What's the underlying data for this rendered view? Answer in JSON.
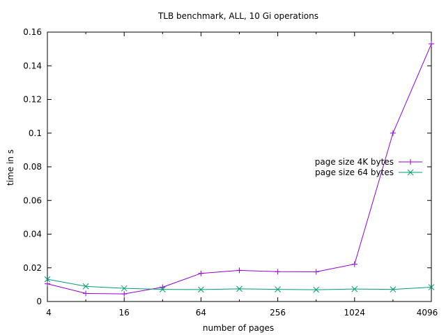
{
  "chart_data": {
    "type": "line",
    "title": "TLB benchmark, ALL, 10 Gi operations",
    "xlabel": "number of pages",
    "ylabel": "time in s",
    "xscale": "log2",
    "xlim": [
      4,
      4096
    ],
    "ylim": [
      0,
      0.16
    ],
    "xticks": [
      4,
      16,
      64,
      256,
      1024,
      4096
    ],
    "yticks": [
      0,
      0.02,
      0.04,
      0.06,
      0.08,
      0.1,
      0.12,
      0.14,
      0.16
    ],
    "ytick_labels": [
      "0",
      "0.02",
      "0.04",
      "0.06",
      "0.08",
      "0.1",
      "0.12",
      "0.14",
      "0.16"
    ],
    "grid": false,
    "legend_position": "right",
    "series": [
      {
        "name": "page size 4K bytes",
        "color": "#9400d3",
        "marker": "plus",
        "x": [
          4,
          8,
          16,
          32,
          64,
          128,
          256,
          512,
          1024,
          2048,
          4096
        ],
        "y": [
          0.0105,
          0.0048,
          0.0045,
          0.0085,
          0.0167,
          0.0185,
          0.0177,
          0.0176,
          0.0222,
          0.1,
          0.153
        ]
      },
      {
        "name": "page size 64 bytes",
        "color": "#009e73",
        "marker": "cross",
        "x": [
          4,
          8,
          16,
          32,
          64,
          128,
          256,
          512,
          1024,
          2048,
          4096
        ],
        "y": [
          0.0132,
          0.009,
          0.0078,
          0.0072,
          0.0071,
          0.0075,
          0.0072,
          0.007,
          0.0074,
          0.0072,
          0.0085
        ]
      }
    ]
  }
}
